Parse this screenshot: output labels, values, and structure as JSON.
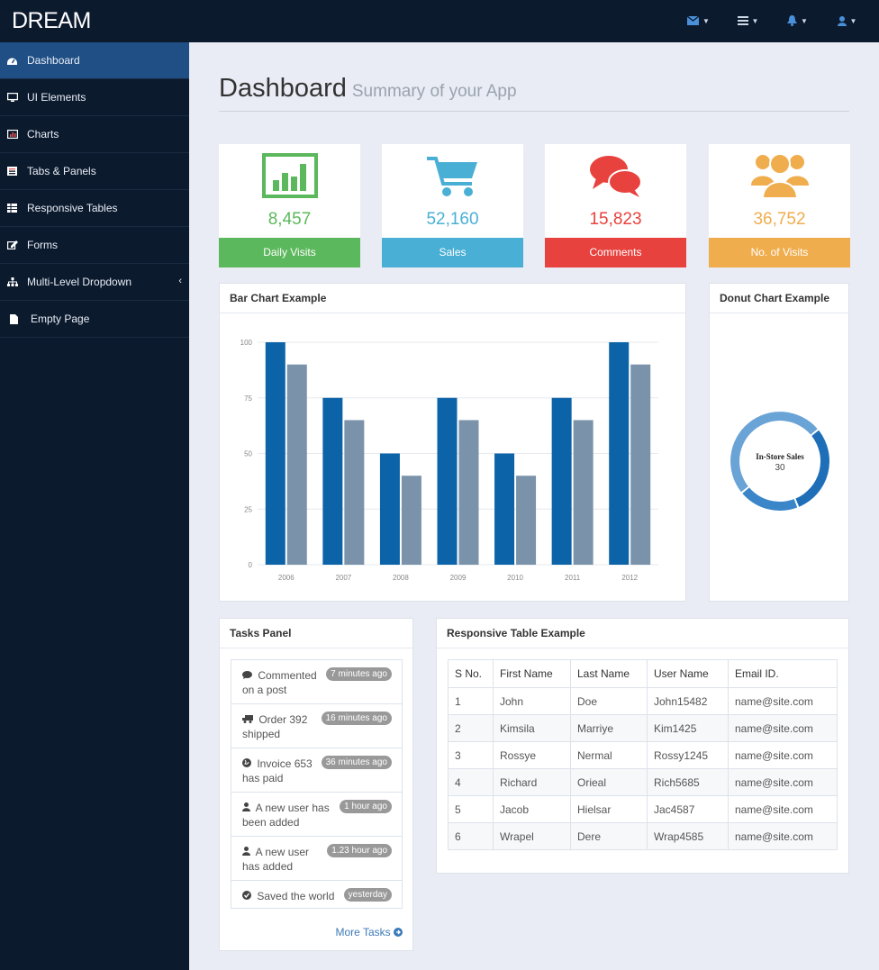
{
  "brand": "DREAM",
  "colors": {
    "topbar": "#0c1a2e",
    "sidebar_active": "#1f4f85",
    "green": "#5cb85c",
    "blue": "#4aafd5",
    "red": "#e8423e",
    "orange": "#f0ad4e",
    "bar_dark": "#0c63a8",
    "bar_light": "#7a93ab"
  },
  "topnav": [
    {
      "icon": "envelope-icon"
    },
    {
      "icon": "tasks-icon"
    },
    {
      "icon": "bell-icon"
    },
    {
      "icon": "user-icon"
    }
  ],
  "sidebar": {
    "items": [
      {
        "label": "Dashboard",
        "icon": "dashboard-icon"
      },
      {
        "label": "UI Elements",
        "icon": "desktop-icon"
      },
      {
        "label": "Charts",
        "icon": "chart-icon"
      },
      {
        "label": "Tabs & Panels",
        "icon": "tabs-icon"
      },
      {
        "label": "Responsive Tables",
        "icon": "table-icon"
      },
      {
        "label": "Forms",
        "icon": "edit-icon"
      },
      {
        "label": "Multi-Level Dropdown",
        "icon": "sitemap-icon"
      },
      {
        "label": "Empty Page",
        "icon": "file-icon"
      }
    ]
  },
  "header": {
    "title": "Dashboard",
    "subtitle": "Summary of your App"
  },
  "stats": [
    {
      "value": "8,457",
      "label": "Daily Visits",
      "icon": "bar-chart-icon"
    },
    {
      "value": "52,160",
      "label": "Sales",
      "icon": "cart-icon"
    },
    {
      "value": "15,823",
      "label": "Comments",
      "icon": "comments-icon"
    },
    {
      "value": "36,752",
      "label": "No. of Visits",
      "icon": "users-icon"
    }
  ],
  "bar_panel": {
    "title": "Bar Chart Example"
  },
  "donut_panel": {
    "title": "Donut Chart Example"
  },
  "chart_data": [
    {
      "type": "bar",
      "categories": [
        "2006",
        "2007",
        "2008",
        "2009",
        "2010",
        "2011",
        "2012"
      ],
      "series": [
        {
          "values": [
            100,
            75,
            50,
            75,
            50,
            75,
            100
          ]
        },
        {
          "values": [
            90,
            65,
            40,
            65,
            40,
            65,
            90
          ]
        }
      ],
      "ylim": [
        0,
        100
      ],
      "yticks": [
        "0",
        "25",
        "50",
        "75",
        "100"
      ],
      "grid": true
    },
    {
      "type": "pie",
      "center_label": "In-Store Sales",
      "center_value": "30",
      "segments": [
        {
          "value": 30,
          "color": "#1f6fb8"
        },
        {
          "value": 20,
          "color": "#3a86c8"
        },
        {
          "value": 50,
          "color": "#6aa3d6"
        }
      ]
    }
  ],
  "tasks_panel": {
    "title": "Tasks Panel",
    "items": [
      {
        "icon": "comment-icon",
        "line1": "Commented",
        "line2": "on a post",
        "badge": "7 minutes ago"
      },
      {
        "icon": "truck-icon",
        "line1": "Order 392",
        "line2": "shipped",
        "badge": "16 minutes ago"
      },
      {
        "icon": "globe-icon",
        "line1": "Invoice 653",
        "line2": "has paid",
        "badge": "36 minutes ago"
      },
      {
        "icon": "user-icon",
        "line1": "A new user has",
        "line2": "been added",
        "badge": "1 hour ago"
      },
      {
        "icon": "user-icon",
        "line1": "A new user",
        "line2": "has added",
        "badge": "1.23 hour ago"
      },
      {
        "icon": "check-circle-icon",
        "line1": "Saved the world",
        "line2": "",
        "badge": "yesterday"
      }
    ],
    "more": "More Tasks"
  },
  "table_panel": {
    "title": "Responsive Table Example",
    "headers": [
      "S No.",
      "First Name",
      "Last Name",
      "User Name",
      "Email ID."
    ],
    "rows": [
      [
        "1",
        "John",
        "Doe",
        "John15482",
        "name@site.com"
      ],
      [
        "2",
        "Kimsila",
        "Marriye",
        "Kim1425",
        "name@site.com"
      ],
      [
        "3",
        "Rossye",
        "Nermal",
        "Rossy1245",
        "name@site.com"
      ],
      [
        "4",
        "Richard",
        "Orieal",
        "Rich5685",
        "name@site.com"
      ],
      [
        "5",
        "Jacob",
        "Hielsar",
        "Jac4587",
        "name@site.com"
      ],
      [
        "6",
        "Wrapel",
        "Dere",
        "Wrap4585",
        "name@site.com"
      ]
    ]
  }
}
